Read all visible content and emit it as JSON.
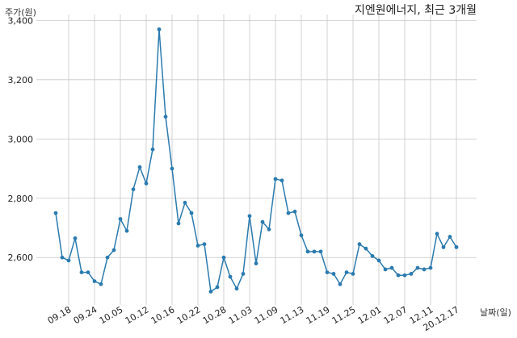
{
  "chart_data": {
    "type": "line",
    "title": "지엔원에너지, 최근 3개월",
    "ylabel": "주가(원)",
    "xlabel": "날짜(일)",
    "ylim": [
      2440,
      3420
    ],
    "yticks": [
      2600,
      2800,
      3000,
      3200,
      3400
    ],
    "ytick_labels": [
      "2,600",
      "2,800",
      "3,000",
      "3,200",
      "3,400"
    ],
    "grid": true,
    "xtick_labels": [
      "09.18",
      "09.24",
      "10.05",
      "10.12",
      "10.16",
      "10.22",
      "10.28",
      "11.03",
      "11.09",
      "11.13",
      "11.19",
      "11.25",
      "12.01",
      "12.07",
      "12.11",
      "20.12.17"
    ],
    "xtick_index": [
      2,
      6,
      10,
      14,
      18,
      22,
      26,
      30,
      34,
      38,
      42,
      46,
      50,
      54,
      58,
      62
    ],
    "series": [
      {
        "color": "#2b7bb0",
        "values": [
          2750,
          2600,
          2590,
          2665,
          2550,
          2550,
          2520,
          2510,
          2600,
          2625,
          2730,
          2690,
          2830,
          2905,
          2850,
          2965,
          3370,
          3075,
          2900,
          2715,
          2785,
          2750,
          2640,
          2645,
          2485,
          2500,
          2600,
          2535,
          2495,
          2545,
          2740,
          2580,
          2720,
          2695,
          2865,
          2860,
          2750,
          2755,
          2675,
          2620,
          2620,
          2620,
          2550,
          2545,
          2510,
          2550,
          2545,
          2645,
          2630,
          2605,
          2590,
          2560,
          2565,
          2540,
          2540,
          2545,
          2565,
          2560,
          2565,
          2680,
          2635,
          2670,
          2635
        ]
      }
    ]
  }
}
